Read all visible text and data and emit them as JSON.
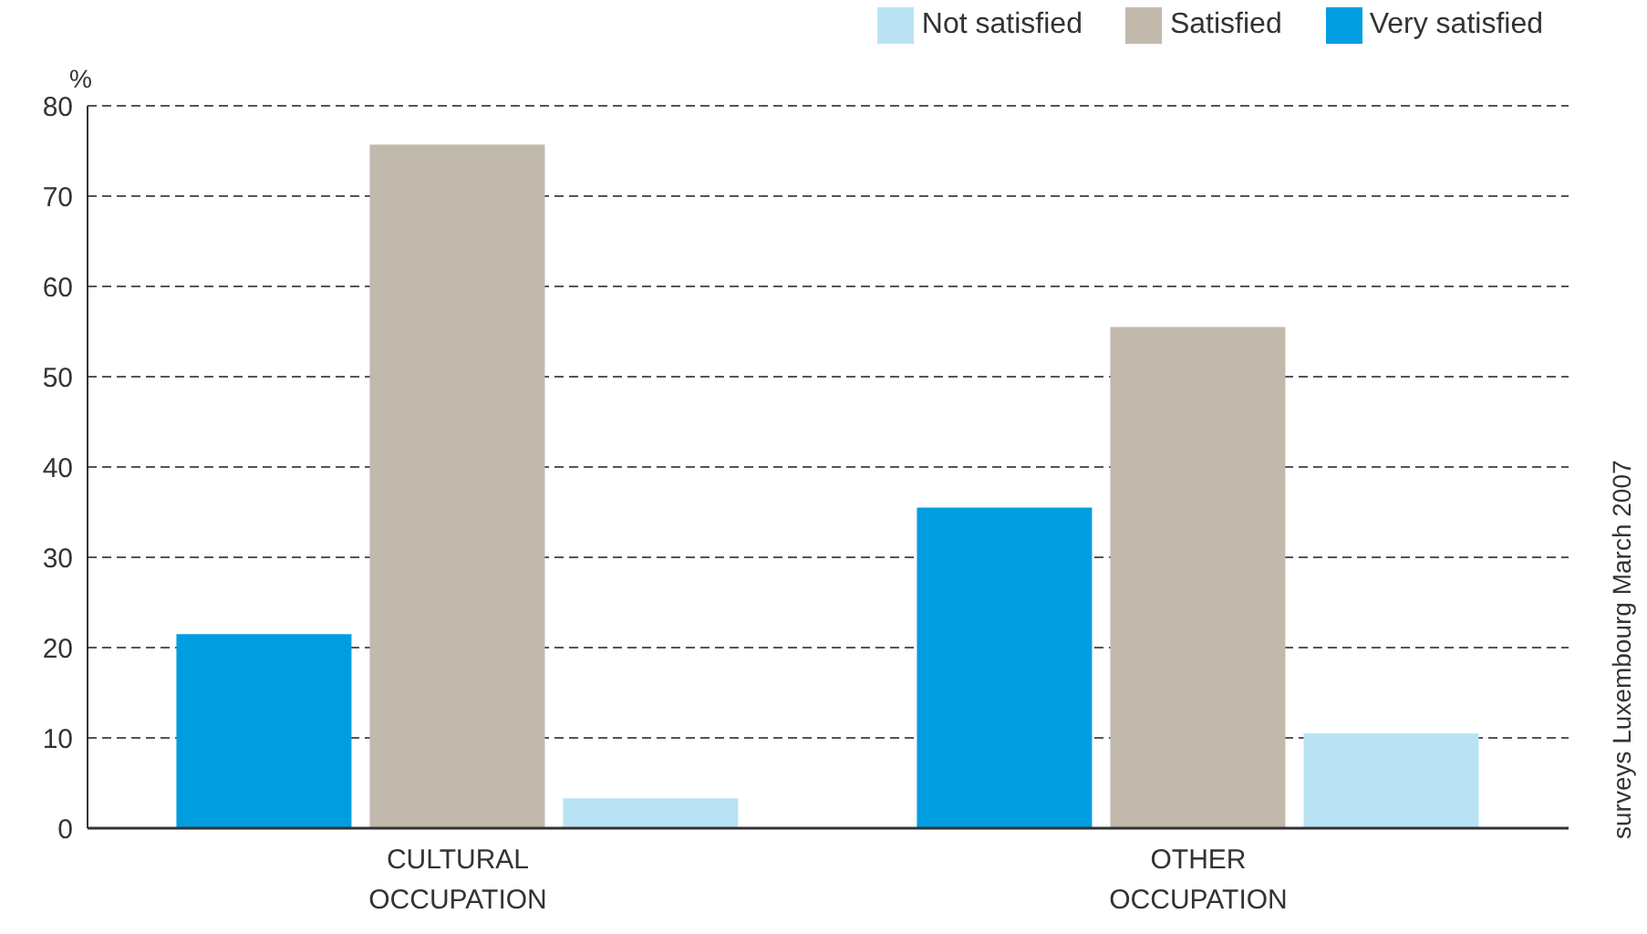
{
  "chart_data": {
    "type": "bar",
    "ylabel": "%",
    "categories": [
      "CULTURAL\nOCCUPATION",
      "OTHER\nOCCUPATION"
    ],
    "series": [
      {
        "name": "Very satisfied",
        "color": "#009ee0",
        "values": [
          21.5,
          35.5
        ]
      },
      {
        "name": "Satisfied",
        "color": "#c2b9ad",
        "values": [
          75.7,
          55.5
        ]
      },
      {
        "name": "Not satisfied",
        "color": "#b9e3f5",
        "values": [
          3.3,
          10.5
        ]
      }
    ],
    "ylim": [
      0,
      80
    ],
    "yticks": [
      0,
      10,
      20,
      30,
      40,
      50,
      60,
      70,
      80
    ],
    "grid": "y",
    "legend": "top right",
    "annotations": [
      "surveys Luxembourg March 2007"
    ]
  }
}
